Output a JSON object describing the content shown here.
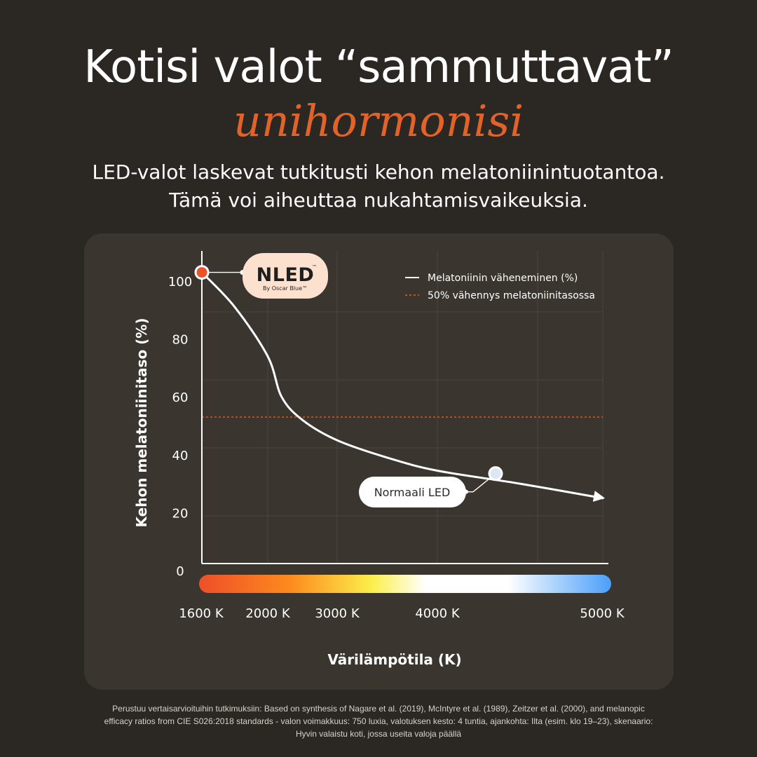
{
  "header": {
    "title": "Kotisi valot “sammuttavat”",
    "accent": "unihormonisi",
    "lead_line1": "LED-valot laskevat tutkitusti kehon melatoniinintuotantoa.",
    "lead_line2": "Tämä voi aiheuttaa nukahtamisvaikeuksia."
  },
  "brand": {
    "logo_text": "NLED",
    "logo_trademark": "™",
    "logo_sub": "By Oscar Blue™"
  },
  "chart_data": {
    "type": "line",
    "title": "",
    "xlabel": "Värilämpötila (K)",
    "ylabel": "Kehon melatoniinitaso (%)",
    "ylim": [
      0,
      105
    ],
    "yticks": [
      0,
      20,
      40,
      60,
      80,
      100
    ],
    "xticks": [
      {
        "label": "1600 K",
        "value": 1600
      },
      {
        "label": "2000 K",
        "value": 2000
      },
      {
        "label": "3000 K",
        "value": 3000
      },
      {
        "label": "4000 K",
        "value": 4000
      },
      {
        "label": "5000 K",
        "value": 5000
      }
    ],
    "series": [
      {
        "name": "Melatoniinin väheneminen (%)",
        "color": "#ffffff",
        "points": [
          {
            "x": 1600,
            "y": 103
          },
          {
            "x": 1800,
            "y": 91
          },
          {
            "x": 2000,
            "y": 74
          },
          {
            "x": 2200,
            "y": 60
          },
          {
            "x": 2500,
            "y": 52
          },
          {
            "x": 3000,
            "y": 45
          },
          {
            "x": 3500,
            "y": 39
          },
          {
            "x": 4000,
            "y": 34.5
          },
          {
            "x": 4500,
            "y": 30
          },
          {
            "x": 5000,
            "y": 25
          }
        ]
      }
    ],
    "reference_line": {
      "name": "50% vähennys melatoniinitasossa",
      "y": 53,
      "color": "#d9622a"
    },
    "annotations": [
      {
        "label": "NLED",
        "x": 1600,
        "y": 103,
        "marker_color": "#e8542a"
      },
      {
        "label": "Normaali LED",
        "x": 4000,
        "y": 33.5,
        "marker_color": "#dde6f5"
      }
    ],
    "legend_position": "top-right",
    "grid": true,
    "gradient_colors": [
      "#ee4f28",
      "#fc8a1e",
      "#fbef4c",
      "#ffffff",
      "#ffffff",
      "#4a9ffa"
    ]
  },
  "footnote": "Perustuu vertaisarvioituihin tutkimuksiin: Based on synthesis of Nagare et al. (2019), McIntyre et al. (1989), Zeitzer et al. (2000), and melanopic efficacy ratios from CIE S026:2018 standards -  valon voimakkuus: 750 luxia, valotuksen kesto: 4 tuntia, ajankohta: Ilta (esim. klo 19–23), skenaario: Hyvin valaistu koti, jossa useita valoja päällä"
}
